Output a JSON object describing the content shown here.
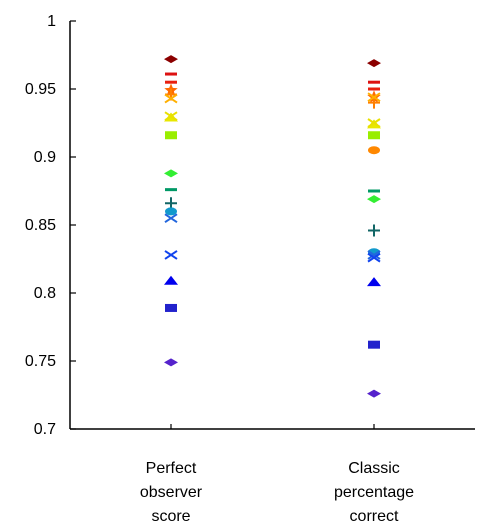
{
  "chart_data": {
    "type": "scatter",
    "title": "",
    "xlabel": "",
    "ylabel": "",
    "ylim": [
      0.7,
      1.0
    ],
    "yticks": [
      0.7,
      0.75,
      0.8,
      0.85,
      0.9,
      0.95,
      1
    ],
    "ytick_labels": [
      "0.7",
      "0.75",
      "0.8",
      "0.85",
      "0.9",
      "0.95",
      "1"
    ],
    "grid": false,
    "legend": "none",
    "categories": [
      {
        "lines": [
          "Perfect",
          "observer",
          "score"
        ]
      },
      {
        "lines": [
          "Classic",
          "percentage",
          "correct"
        ]
      }
    ],
    "series": [
      {
        "marker": "diamond",
        "color": "#8b0000",
        "values": [
          0.972,
          0.969
        ]
      },
      {
        "marker": "minus",
        "color": "#dd1111",
        "values": [
          0.961,
          0.955
        ]
      },
      {
        "marker": "minus",
        "color": "#e82010",
        "values": [
          0.955,
          0.95
        ]
      },
      {
        "marker": "star",
        "color": "#ff6a00",
        "values": [
          0.949,
          0.944
        ]
      },
      {
        "marker": "plus",
        "color": "#ff7f00",
        "values": [
          0.946,
          0.94
        ]
      },
      {
        "marker": "x",
        "color": "#ffb000",
        "values": [
          0.943,
          0.944
        ]
      },
      {
        "marker": "triangle",
        "color": "#e8e800",
        "values": [
          0.929,
          0.924
        ]
      },
      {
        "marker": "x",
        "color": "#e8e000",
        "values": [
          0.93,
          0.925
        ]
      },
      {
        "marker": "square",
        "color": "#99ee00",
        "values": [
          0.916,
          0.916
        ]
      },
      {
        "marker": "circle",
        "color": "#ff8800",
        "values": [
          null,
          0.905
        ]
      },
      {
        "marker": "diamond",
        "color": "#33ee33",
        "values": [
          0.888,
          0.869
        ]
      },
      {
        "marker": "minus",
        "color": "#009966",
        "values": [
          0.876,
          0.875
        ]
      },
      {
        "marker": "plus",
        "color": "#126666",
        "values": [
          0.866,
          0.846
        ]
      },
      {
        "marker": "circle",
        "color": "#1199cc",
        "values": [
          0.86,
          0.83
        ]
      },
      {
        "marker": "x",
        "color": "#2266dd",
        "values": [
          0.855,
          0.828
        ]
      },
      {
        "marker": "x",
        "color": "#1144ee",
        "values": [
          0.828,
          0.826
        ]
      },
      {
        "marker": "triangle",
        "color": "#0000ee",
        "values": [
          0.809,
          0.808
        ]
      },
      {
        "marker": "square",
        "color": "#2222cc",
        "values": [
          0.789,
          0.762
        ]
      },
      {
        "marker": "diamond",
        "color": "#5522cc",
        "values": [
          0.749,
          0.726
        ]
      }
    ]
  }
}
